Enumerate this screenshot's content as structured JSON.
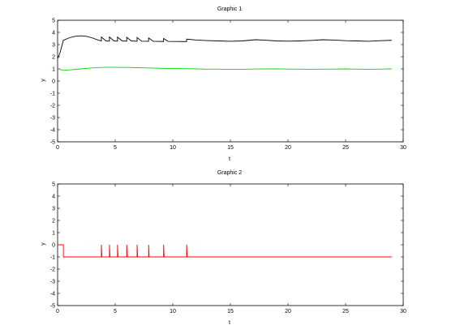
{
  "chart_data": [
    {
      "type": "line",
      "title": "Graphic 1",
      "xlabel": "t",
      "ylabel": "y",
      "xlim": [
        0,
        30
      ],
      "ylim": [
        -5,
        5
      ],
      "xticks": [
        0,
        5,
        10,
        15,
        20,
        25,
        30
      ],
      "yticks": [
        -5,
        -4,
        -3,
        -2,
        -1,
        0,
        1,
        2,
        3,
        4,
        5
      ],
      "grid": false,
      "series": [
        {
          "color": "#000000",
          "points": [
            [
              0,
              1.85
            ],
            [
              0.2,
              2.3
            ],
            [
              0.5,
              3.35
            ],
            [
              1,
              3.55
            ],
            [
              1.5,
              3.68
            ],
            [
              2,
              3.72
            ],
            [
              2.5,
              3.68
            ],
            [
              3,
              3.55
            ],
            [
              3.5,
              3.38
            ],
            [
              3.8,
              3.3
            ],
            [
              3.8,
              3.62
            ],
            [
              4.2,
              3.3
            ],
            [
              4.5,
              3.28
            ],
            [
              4.5,
              3.62
            ],
            [
              4.9,
              3.3
            ],
            [
              5.2,
              3.28
            ],
            [
              5.2,
              3.62
            ],
            [
              5.6,
              3.3
            ],
            [
              6,
              3.28
            ],
            [
              6,
              3.6
            ],
            [
              6.4,
              3.3
            ],
            [
              6.9,
              3.27
            ],
            [
              6.9,
              3.58
            ],
            [
              7.3,
              3.28
            ],
            [
              7.9,
              3.27
            ],
            [
              7.9,
              3.55
            ],
            [
              8.3,
              3.27
            ],
            [
              9.2,
              3.25
            ],
            [
              9.2,
              3.5
            ],
            [
              9.6,
              3.26
            ],
            [
              11.2,
              3.25
            ],
            [
              11.2,
              3.45
            ],
            [
              12,
              3.38
            ],
            [
              13,
              3.33
            ],
            [
              14,
              3.3
            ],
            [
              15,
              3.27
            ],
            [
              16,
              3.3
            ],
            [
              17.2,
              3.4
            ],
            [
              18,
              3.36
            ],
            [
              19,
              3.3
            ],
            [
              20,
              3.28
            ],
            [
              21,
              3.3
            ],
            [
              22,
              3.34
            ],
            [
              23,
              3.4
            ],
            [
              24,
              3.37
            ],
            [
              25,
              3.32
            ],
            [
              26,
              3.3
            ],
            [
              27,
              3.27
            ],
            [
              28,
              3.32
            ],
            [
              29,
              3.35
            ]
          ]
        },
        {
          "color": "#00dd00",
          "points": [
            [
              0,
              1.0
            ],
            [
              0.5,
              0.88
            ],
            [
              1,
              0.92
            ],
            [
              2,
              1.0
            ],
            [
              3,
              1.08
            ],
            [
              4,
              1.13
            ],
            [
              5,
              1.13
            ],
            [
              6,
              1.12
            ],
            [
              7,
              1.1
            ],
            [
              8,
              1.07
            ],
            [
              9,
              1.05
            ],
            [
              10,
              1.03
            ],
            [
              11,
              1.02
            ],
            [
              12,
              1.0
            ],
            [
              13,
              0.98
            ],
            [
              14,
              0.98
            ],
            [
              15,
              0.96
            ],
            [
              16,
              0.97
            ],
            [
              17,
              0.99
            ],
            [
              18,
              1.0
            ],
            [
              19,
              1.0
            ],
            [
              20,
              0.99
            ],
            [
              21,
              0.98
            ],
            [
              22,
              0.97
            ],
            [
              23,
              0.98
            ],
            [
              24,
              0.99
            ],
            [
              25,
              1.0
            ],
            [
              26,
              0.98
            ],
            [
              27,
              0.97
            ],
            [
              28,
              0.98
            ],
            [
              29,
              1.0
            ]
          ]
        }
      ]
    },
    {
      "type": "line",
      "title": "Graphic 2",
      "xlabel": "t",
      "ylabel": "y",
      "xlim": [
        0,
        30
      ],
      "ylim": [
        -5,
        5
      ],
      "xticks": [
        0,
        5,
        10,
        15,
        20,
        25,
        30
      ],
      "yticks": [
        -5,
        -4,
        -3,
        -2,
        -1,
        0,
        1,
        2,
        3,
        4,
        5
      ],
      "grid": false,
      "series": [
        {
          "color": "#ff0000",
          "points": [
            [
              0,
              0
            ],
            [
              0.5,
              0
            ],
            [
              0.5,
              -1
            ],
            [
              3.8,
              -1
            ],
            [
              3.8,
              0
            ],
            [
              3.85,
              -1
            ],
            [
              4.5,
              -1
            ],
            [
              4.5,
              0
            ],
            [
              4.55,
              -1
            ],
            [
              5.2,
              -1
            ],
            [
              5.2,
              0
            ],
            [
              5.25,
              -1
            ],
            [
              6,
              -1
            ],
            [
              6,
              0
            ],
            [
              6.05,
              -1
            ],
            [
              6.9,
              -1
            ],
            [
              6.9,
              0
            ],
            [
              6.95,
              -1
            ],
            [
              7.9,
              -1
            ],
            [
              7.9,
              0
            ],
            [
              7.95,
              -1
            ],
            [
              9.2,
              -1
            ],
            [
              9.2,
              0
            ],
            [
              9.25,
              -1
            ],
            [
              11.2,
              -1
            ],
            [
              11.2,
              0
            ],
            [
              11.25,
              -1
            ],
            [
              29,
              -1
            ]
          ]
        }
      ]
    }
  ]
}
